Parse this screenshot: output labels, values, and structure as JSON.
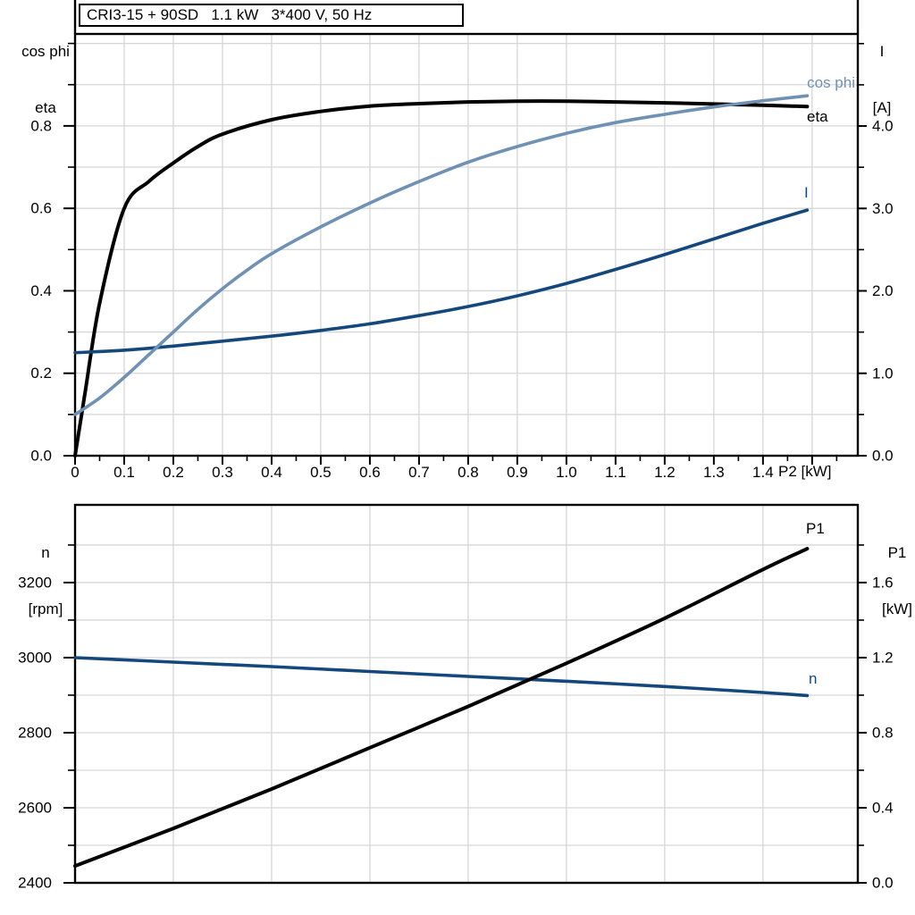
{
  "title": "CRI3-15 + 90SD   1.1 kW   3*400 V, 50 Hz",
  "colors": {
    "black": "#000000",
    "light_blue": "#6e91b4",
    "dark_blue": "#14477c",
    "grid": "#d6d6d9",
    "axis": "#000000"
  },
  "top_chart": {
    "left_axis_label_line1": "cos phi",
    "left_axis_label_line2": "eta",
    "right_axis_label_line1": "I",
    "right_axis_label_line2": "[A]",
    "x_axis_label": "P2 [kW]",
    "curve_labels": {
      "cos_phi": "cos phi",
      "eta": "eta",
      "current": "I"
    }
  },
  "bottom_chart": {
    "left_axis_label_line1": "n",
    "left_axis_label_line2": "[rpm]",
    "right_axis_label_line1": "P1",
    "right_axis_label_line2": "[kW]",
    "curve_labels": {
      "p1": "P1",
      "n": "n"
    }
  },
  "chart_data": [
    {
      "type": "line",
      "title": "CRI3-15 + 90SD   1.1 kW   3*400 V, 50 Hz",
      "xlabel": "P2 [kW]",
      "ylabel_left": "cos phi, eta",
      "ylabel_right": "I [A]",
      "xlim": [
        0,
        1.593
      ],
      "ylim_left": [
        0,
        1.023
      ],
      "ylim_right": [
        0,
        5.117
      ],
      "x_ticks": [
        0,
        0.1,
        0.2,
        0.3,
        0.4,
        0.5,
        0.6,
        0.7,
        0.8,
        0.9,
        1.0,
        1.1,
        1.2,
        1.3,
        1.4
      ],
      "x_tick_labels": [
        "0",
        "0.1",
        "0.2",
        "0.3",
        "0.4",
        "0.5",
        "0.6",
        "0.7",
        "0.8",
        "0.9",
        "1.0",
        "1.1",
        "1.2",
        "1.3",
        "1.4"
      ],
      "x_major_extra": [
        1.5
      ],
      "x_minor": [
        0.05,
        0.15,
        0.25,
        0.35,
        0.45,
        0.55,
        0.65,
        0.75,
        0.85,
        0.95,
        1.05,
        1.15,
        1.25,
        1.35,
        1.45,
        1.55
      ],
      "y_ticks_left": [
        0,
        0.2,
        0.4,
        0.6,
        0.8
      ],
      "y_tick_labels_left": [
        "0.0",
        "0.2",
        "0.4",
        "0.6",
        "0.8"
      ],
      "y_minor_left": [
        0.1,
        0.3,
        0.5,
        0.7,
        0.9,
        1.0
      ],
      "y_ticks_right": [
        0,
        1.0,
        2.0,
        3.0,
        4.0
      ],
      "y_tick_labels_right": [
        "0.0",
        "1.0",
        "2.0",
        "3.0",
        "4.0"
      ],
      "y_minor_right": [
        0.5,
        1.5,
        2.5,
        3.5,
        4.5,
        5.0
      ],
      "grid": {
        "x": [
          0.1,
          0.2,
          0.3,
          0.4,
          0.5,
          0.6,
          0.7,
          0.8,
          0.9,
          1.0,
          1.1,
          1.2,
          1.3,
          1.4,
          1.5
        ],
        "y_left": [
          0.1,
          0.2,
          0.3,
          0.4,
          0.5,
          0.6,
          0.7,
          0.8,
          0.9,
          1.0
        ]
      },
      "legend_position": "labels-at-line-ends",
      "series": [
        {
          "name": "eta",
          "axis": "left",
          "color": "black",
          "lw": 4,
          "x": [
            0,
            0.02,
            0.05,
            0.1,
            0.15,
            0.2,
            0.25,
            0.3,
            0.4,
            0.5,
            0.6,
            0.7,
            0.8,
            0.9,
            1.0,
            1.1,
            1.2,
            1.3,
            1.4,
            1.49
          ],
          "y": [
            0,
            0.15,
            0.37,
            0.6,
            0.665,
            0.71,
            0.75,
            0.78,
            0.815,
            0.835,
            0.848,
            0.854,
            0.858,
            0.86,
            0.86,
            0.858,
            0.856,
            0.853,
            0.85,
            0.847
          ]
        },
        {
          "name": "I",
          "axis": "right",
          "color": "dark_blue",
          "lw": 3.6,
          "x": [
            0,
            0.1,
            0.2,
            0.3,
            0.4,
            0.5,
            0.6,
            0.7,
            0.8,
            0.9,
            1.0,
            1.1,
            1.2,
            1.3,
            1.4,
            1.49
          ],
          "y": [
            1.25,
            1.28,
            1.33,
            1.39,
            1.45,
            1.52,
            1.6,
            1.7,
            1.81,
            1.94,
            2.09,
            2.26,
            2.44,
            2.63,
            2.82,
            2.98
          ]
        },
        {
          "name": "cos phi",
          "axis": "left",
          "color": "light_blue",
          "lw": 3.6,
          "x": [
            0,
            0.05,
            0.1,
            0.15,
            0.2,
            0.25,
            0.3,
            0.35,
            0.4,
            0.5,
            0.6,
            0.7,
            0.8,
            0.9,
            1.0,
            1.1,
            1.2,
            1.3,
            1.4,
            1.49
          ],
          "y": [
            0.1,
            0.14,
            0.19,
            0.245,
            0.3,
            0.355,
            0.405,
            0.45,
            0.49,
            0.555,
            0.613,
            0.665,
            0.712,
            0.75,
            0.782,
            0.808,
            0.828,
            0.846,
            0.861,
            0.873
          ]
        }
      ]
    },
    {
      "type": "line",
      "title": "",
      "xlabel": "",
      "ylabel_left": "n [rpm]",
      "ylabel_right": "P1 [kW]",
      "xlim": [
        0,
        1.593
      ],
      "ylim_left": [
        2400,
        3407
      ],
      "ylim_right": [
        0,
        2.014
      ],
      "x_ticks": [],
      "x_tick_labels": [],
      "x_major_extra": [],
      "x_minor": [],
      "y_ticks_left": [
        2400,
        2600,
        2800,
        3000,
        3200
      ],
      "y_tick_labels_left": [
        "2400",
        "2600",
        "2800",
        "3000",
        "3200"
      ],
      "y_minor_left": [
        2500,
        2700,
        2900,
        3100,
        3300
      ],
      "y_ticks_right": [
        0,
        0.4,
        0.8,
        1.2,
        1.6
      ],
      "y_tick_labels_right": [
        "0.0",
        "0.4",
        "0.8",
        "1.2",
        "1.6"
      ],
      "y_minor_right": [
        0.2,
        0.6,
        1.0,
        1.4,
        1.8
      ],
      "grid": {
        "x": [
          0.2,
          0.4,
          0.6,
          0.8,
          1.0,
          1.2,
          1.4
        ],
        "y_left": [
          2500,
          2600,
          2700,
          2800,
          2900,
          3000,
          3100,
          3200,
          3300
        ]
      },
      "legend_position": "labels-at-line-ends",
      "series": [
        {
          "name": "n",
          "axis": "left",
          "color": "dark_blue",
          "lw": 3.6,
          "x": [
            0,
            0.2,
            0.4,
            0.6,
            0.8,
            1.0,
            1.2,
            1.4,
            1.49
          ],
          "y": [
            3000,
            2988,
            2976,
            2963,
            2950,
            2937,
            2923,
            2907,
            2899
          ]
        },
        {
          "name": "P1",
          "axis": "right",
          "color": "black",
          "lw": 4,
          "x": [
            0,
            0.2,
            0.4,
            0.6,
            0.8,
            1.0,
            1.2,
            1.4,
            1.49
          ],
          "y": [
            0.09,
            0.29,
            0.5,
            0.72,
            0.94,
            1.17,
            1.41,
            1.67,
            1.78
          ]
        }
      ]
    }
  ]
}
